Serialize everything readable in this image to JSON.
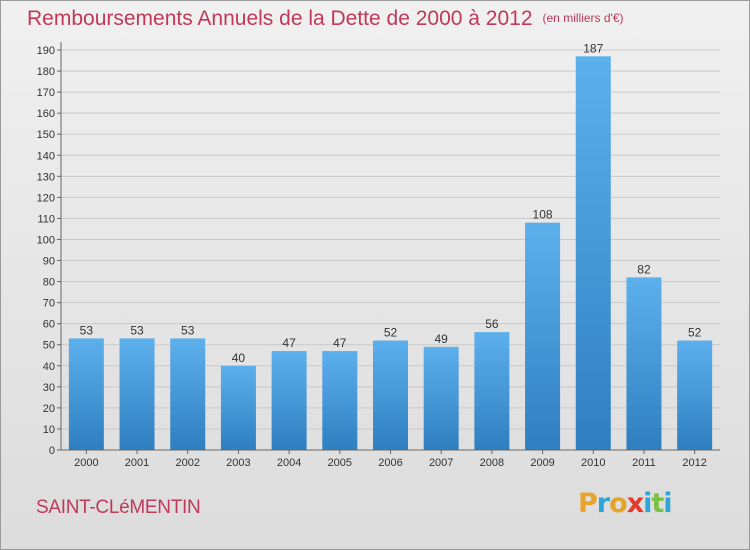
{
  "header": {
    "title": "Remboursements Annuels de la Dette de 2000 à 2012",
    "subtitle": "(en milliers d'€)"
  },
  "footer": {
    "city": "SAINT-CLéMENTIN",
    "logo": "Proxiti",
    "logo_colors": [
      "#e8a42a",
      "#2aa7d8",
      "#e8a42a",
      "#e23b2d",
      "#2aa7d8",
      "#7bc043",
      "#2aa7d8"
    ]
  },
  "chart_data": {
    "type": "bar",
    "categories": [
      "2000",
      "2001",
      "2002",
      "2003",
      "2004",
      "2005",
      "2006",
      "2007",
      "2008",
      "2009",
      "2010",
      "2011",
      "2012"
    ],
    "values": [
      53,
      53,
      53,
      40,
      47,
      47,
      52,
      49,
      56,
      108,
      187,
      82,
      52
    ],
    "ylim": [
      0,
      190
    ],
    "ytick_step": 10,
    "grid": true,
    "bar_color": "#4a9fdf",
    "title_color": "#c0395a"
  }
}
